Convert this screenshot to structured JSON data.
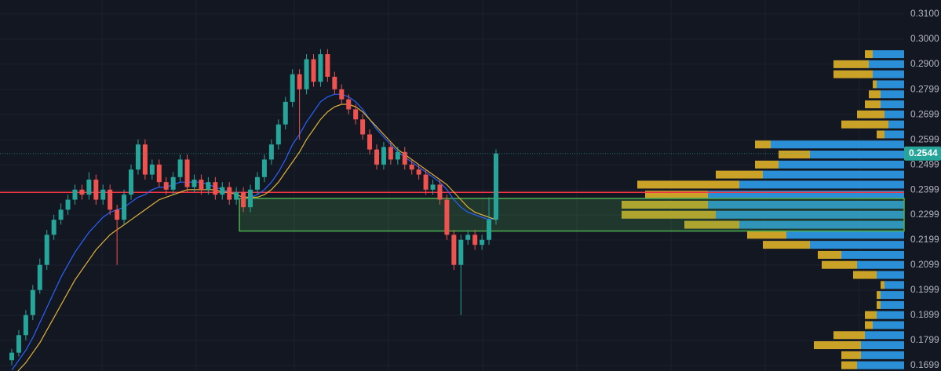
{
  "chart_data": {
    "type": "candlestick",
    "ylim": [
      0.1677,
      0.3156
    ],
    "yticks": [
      {
        "value": 0.31,
        "label": "0.3100"
      },
      {
        "value": 0.3,
        "label": "0.3000"
      },
      {
        "value": 0.29,
        "label": "0.2900"
      },
      {
        "value": 0.2799,
        "label": "0.2799"
      },
      {
        "value": 0.2699,
        "label": "0.2699"
      },
      {
        "value": 0.2599,
        "label": "0.2599"
      },
      {
        "value": 0.2499,
        "label": "0.2499"
      },
      {
        "value": 0.2399,
        "label": "0.2399"
      },
      {
        "value": 0.2299,
        "label": "0.2299"
      },
      {
        "value": 0.2199,
        "label": "0.2199"
      },
      {
        "value": 0.2099,
        "label": "0.2099"
      },
      {
        "value": 0.1999,
        "label": "0.1999"
      },
      {
        "value": 0.1899,
        "label": "0.1899"
      },
      {
        "value": 0.1799,
        "label": "0.1799"
      },
      {
        "value": 0.1699,
        "label": "0.1699"
      }
    ],
    "grid": true,
    "up_color": "#26a69a",
    "down_color": "#ef5350",
    "ohlc": [
      [
        0.172,
        0.1765,
        0.17,
        0.175
      ],
      [
        0.175,
        0.184,
        0.1735,
        0.182
      ],
      [
        0.182,
        0.192,
        0.18,
        0.19
      ],
      [
        0.19,
        0.202,
        0.188,
        0.2
      ],
      [
        0.2,
        0.2125,
        0.1985,
        0.21
      ],
      [
        0.21,
        0.224,
        0.208,
        0.222
      ],
      [
        0.222,
        0.23,
        0.22,
        0.228
      ],
      [
        0.228,
        0.2345,
        0.226,
        0.232
      ],
      [
        0.232,
        0.238,
        0.23,
        0.236
      ],
      [
        0.236,
        0.242,
        0.234,
        0.24
      ],
      [
        0.24,
        0.242,
        0.236,
        0.238
      ],
      [
        0.238,
        0.247,
        0.236,
        0.244
      ],
      [
        0.244,
        0.246,
        0.234,
        0.236
      ],
      [
        0.236,
        0.242,
        0.234,
        0.24
      ],
      [
        0.24,
        0.242,
        0.23,
        0.232
      ],
      [
        0.232,
        0.234,
        0.21,
        0.228
      ],
      [
        0.228,
        0.24,
        0.226,
        0.238
      ],
      [
        0.238,
        0.25,
        0.236,
        0.248
      ],
      [
        0.248,
        0.26,
        0.246,
        0.258
      ],
      [
        0.258,
        0.26,
        0.244,
        0.246
      ],
      [
        0.246,
        0.252,
        0.244,
        0.25
      ],
      [
        0.25,
        0.252,
        0.241,
        0.243
      ],
      [
        0.243,
        0.245,
        0.238,
        0.24
      ],
      [
        0.24,
        0.247,
        0.238,
        0.245
      ],
      [
        0.245,
        0.254,
        0.243,
        0.252
      ],
      [
        0.252,
        0.254,
        0.239,
        0.241
      ],
      [
        0.241,
        0.246,
        0.239,
        0.244
      ],
      [
        0.244,
        0.246,
        0.238,
        0.24
      ],
      [
        0.24,
        0.245,
        0.238,
        0.243
      ],
      [
        0.243,
        0.245,
        0.236,
        0.238
      ],
      [
        0.238,
        0.243,
        0.236,
        0.241
      ],
      [
        0.241,
        0.243,
        0.234,
        0.236
      ],
      [
        0.236,
        0.241,
        0.234,
        0.239
      ],
      [
        0.239,
        0.241,
        0.231,
        0.233
      ],
      [
        0.233,
        0.242,
        0.231,
        0.24
      ],
      [
        0.24,
        0.247,
        0.238,
        0.245
      ],
      [
        0.245,
        0.254,
        0.243,
        0.252
      ],
      [
        0.252,
        0.26,
        0.25,
        0.258
      ],
      [
        0.258,
        0.268,
        0.256,
        0.266
      ],
      [
        0.266,
        0.277,
        0.264,
        0.275
      ],
      [
        0.275,
        0.288,
        0.273,
        0.286
      ],
      [
        0.286,
        0.288,
        0.26,
        0.28
      ],
      [
        0.28,
        0.294,
        0.278,
        0.292
      ],
      [
        0.292,
        0.294,
        0.281,
        0.283
      ],
      [
        0.283,
        0.296,
        0.281,
        0.294
      ],
      [
        0.294,
        0.296,
        0.283,
        0.285
      ],
      [
        0.285,
        0.287,
        0.278,
        0.28
      ],
      [
        0.28,
        0.282,
        0.274,
        0.276
      ],
      [
        0.276,
        0.278,
        0.27,
        0.272
      ],
      [
        0.272,
        0.274,
        0.266,
        0.268
      ],
      [
        0.268,
        0.27,
        0.26,
        0.262
      ],
      [
        0.262,
        0.264,
        0.254,
        0.256
      ],
      [
        0.256,
        0.258,
        0.248,
        0.25
      ],
      [
        0.25,
        0.259,
        0.248,
        0.257
      ],
      [
        0.257,
        0.259,
        0.25,
        0.252
      ],
      [
        0.252,
        0.257,
        0.25,
        0.255
      ],
      [
        0.255,
        0.257,
        0.248,
        0.25
      ],
      [
        0.25,
        0.252,
        0.246,
        0.248
      ],
      [
        0.248,
        0.25,
        0.244,
        0.246
      ],
      [
        0.246,
        0.248,
        0.238,
        0.24
      ],
      [
        0.24,
        0.244,
        0.238,
        0.242
      ],
      [
        0.242,
        0.244,
        0.234,
        0.236
      ],
      [
        0.236,
        0.238,
        0.22,
        0.222
      ],
      [
        0.222,
        0.224,
        0.208,
        0.21
      ],
      [
        0.21,
        0.222,
        0.19,
        0.22
      ],
      [
        0.22,
        0.224,
        0.218,
        0.222
      ],
      [
        0.222,
        0.224,
        0.216,
        0.218
      ],
      [
        0.218,
        0.222,
        0.216,
        0.22
      ],
      [
        0.22,
        0.237,
        0.218,
        0.228
      ],
      [
        0.228,
        0.256,
        0.226,
        0.2544
      ]
    ],
    "series": [
      {
        "color": "#2962ff",
        "values": [
          0.168,
          0.172,
          0.176,
          0.181,
          0.187,
          0.193,
          0.199,
          0.205,
          0.21,
          0.215,
          0.219,
          0.223,
          0.226,
          0.229,
          0.231,
          0.232,
          0.233,
          0.235,
          0.237,
          0.238,
          0.24,
          0.241,
          0.241,
          0.242,
          0.243,
          0.243,
          0.243,
          0.243,
          0.242,
          0.241,
          0.24,
          0.239,
          0.238,
          0.237,
          0.237,
          0.238,
          0.24,
          0.243,
          0.247,
          0.252,
          0.258,
          0.262,
          0.267,
          0.271,
          0.275,
          0.277,
          0.278,
          0.278,
          0.277,
          0.275,
          0.272,
          0.268,
          0.264,
          0.261,
          0.258,
          0.255,
          0.253,
          0.251,
          0.249,
          0.247,
          0.245,
          0.243,
          0.24,
          0.236,
          0.233,
          0.231,
          0.23,
          0.229,
          0.228,
          0.229
        ]
      },
      {
        "color": "#e0b23a",
        "values": [
          0.165,
          0.168,
          0.171,
          0.175,
          0.179,
          0.184,
          0.189,
          0.194,
          0.199,
          0.204,
          0.208,
          0.212,
          0.216,
          0.219,
          0.222,
          0.224,
          0.226,
          0.228,
          0.23,
          0.232,
          0.234,
          0.236,
          0.237,
          0.238,
          0.239,
          0.24,
          0.24,
          0.24,
          0.24,
          0.24,
          0.239,
          0.239,
          0.238,
          0.237,
          0.237,
          0.237,
          0.238,
          0.24,
          0.243,
          0.247,
          0.251,
          0.255,
          0.26,
          0.264,
          0.268,
          0.271,
          0.273,
          0.274,
          0.274,
          0.273,
          0.271,
          0.268,
          0.265,
          0.262,
          0.259,
          0.256,
          0.254,
          0.252,
          0.25,
          0.248,
          0.246,
          0.244,
          0.242,
          0.239,
          0.236,
          0.233,
          0.231,
          0.23,
          0.229,
          0.228
        ]
      }
    ],
    "hline": {
      "value": 0.2389,
      "color": "#f23645"
    },
    "zone": {
      "low": 0.2235,
      "high": 0.2365,
      "color": "#4caf50"
    },
    "last_price": 0.2544,
    "volume_profile": {
      "up_color": "#2a8fd6",
      "down_color": "#c9a227",
      "prices": [
        0.17,
        0.174,
        0.178,
        0.182,
        0.186,
        0.19,
        0.194,
        0.198,
        0.202,
        0.206,
        0.21,
        0.214,
        0.218,
        0.222,
        0.226,
        0.23,
        0.234,
        0.238,
        0.242,
        0.246,
        0.25,
        0.254,
        0.258,
        0.262,
        0.266,
        0.27,
        0.274,
        0.278,
        0.282,
        0.286,
        0.29,
        0.294
      ],
      "up": [
        60,
        55,
        55,
        50,
        40,
        35,
        30,
        30,
        25,
        35,
        60,
        80,
        120,
        150,
        210,
        240,
        250,
        250,
        210,
        180,
        160,
        120,
        170,
        25,
        20,
        25,
        30,
        30,
        35,
        40,
        45,
        40
      ],
      "down": [
        20,
        25,
        60,
        40,
        10,
        15,
        5,
        5,
        5,
        30,
        45,
        30,
        60,
        50,
        70,
        120,
        110,
        80,
        130,
        60,
        30,
        40,
        20,
        10,
        60,
        35,
        20,
        15,
        5,
        50,
        45,
        10
      ]
    }
  }
}
